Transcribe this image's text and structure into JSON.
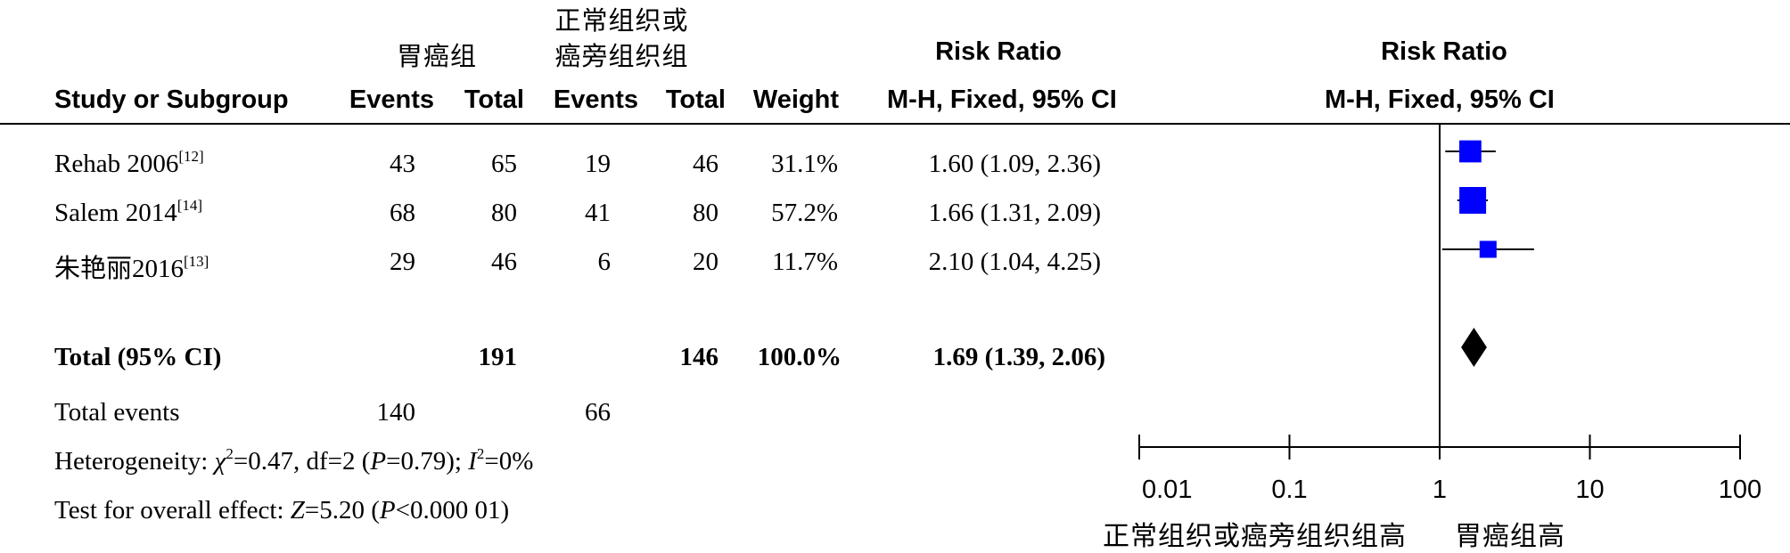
{
  "group_headers": {
    "group1": "胃癌组",
    "group2_line1": "正常组织或",
    "group2_line2": "癌旁组织组",
    "effect_title": "Risk Ratio",
    "plot_title": "Risk Ratio"
  },
  "columns": {
    "study": "Study or Subgroup",
    "events1": "Events",
    "total1": "Total",
    "events2": "Events",
    "total2": "Total",
    "weight": "Weight",
    "effect": "M-H, Fixed, 95% CI",
    "plot": "M-H, Fixed, 95% CI"
  },
  "studies": [
    {
      "name": "Rehab 2006",
      "ref": "[12]",
      "events1": "43",
      "total1": "65",
      "events2": "19",
      "total2": "46",
      "weight": "31.1%",
      "ci_text": "1.60 (1.09, 2.36)"
    },
    {
      "name": "Salem 2014",
      "ref": "[14]",
      "events1": "68",
      "total1": "80",
      "events2": "41",
      "total2": "80",
      "weight": "57.2%",
      "ci_text": "1.66 (1.31, 2.09)"
    },
    {
      "name": "朱艳丽2016",
      "ref": "[13]",
      "events1": "29",
      "total1": "46",
      "events2": "6",
      "total2": "20",
      "weight": "11.7%",
      "ci_text": "2.10 (1.04, 4.25)"
    }
  ],
  "total": {
    "label": "Total (95% CI)",
    "total1": "191",
    "total2": "146",
    "weight": "100.0%",
    "ci_text": "1.69 (1.39, 2.06)"
  },
  "total_events": {
    "label": "Total events",
    "events1": "140",
    "events2": "66"
  },
  "heterogeneity": {
    "prefix": "Heterogeneity: ",
    "chi": "χ",
    "chi_sup": "2",
    "mid1": "=0.47, df=2 (",
    "p": "P",
    "mid2": "=0.79); ",
    "i": "I",
    "i_sup": "2",
    "end": "=0%"
  },
  "overall_effect": {
    "prefix": "Test for overall effect: ",
    "z": "Z",
    "mid": "=5.20 (",
    "p": "P",
    "end": "<0.000 01)"
  },
  "axis": {
    "left_label": "正常组织或癌旁组织组高",
    "right_label": "胃癌组高"
  },
  "chart_data": {
    "type": "forest",
    "scale": "log",
    "xlim": [
      0.01,
      100
    ],
    "null_value": 1,
    "ticks": [
      0.01,
      0.1,
      1,
      10,
      100
    ],
    "tick_labels": [
      "0.01",
      "0.1",
      "1",
      "10",
      "100"
    ],
    "studies": [
      {
        "label": "Rehab 2006",
        "rr": 1.6,
        "lower": 1.09,
        "upper": 2.36,
        "weight": 31.1
      },
      {
        "label": "Salem 2014",
        "rr": 1.66,
        "lower": 1.31,
        "upper": 2.09,
        "weight": 57.2
      },
      {
        "label": "朱艳丽2016",
        "rr": 2.1,
        "lower": 1.04,
        "upper": 4.25,
        "weight": 11.7
      }
    ],
    "pooled": {
      "rr": 1.69,
      "lower": 1.39,
      "upper": 2.06
    },
    "marker_color": "#0000ff",
    "pooled_color": "#000000"
  }
}
